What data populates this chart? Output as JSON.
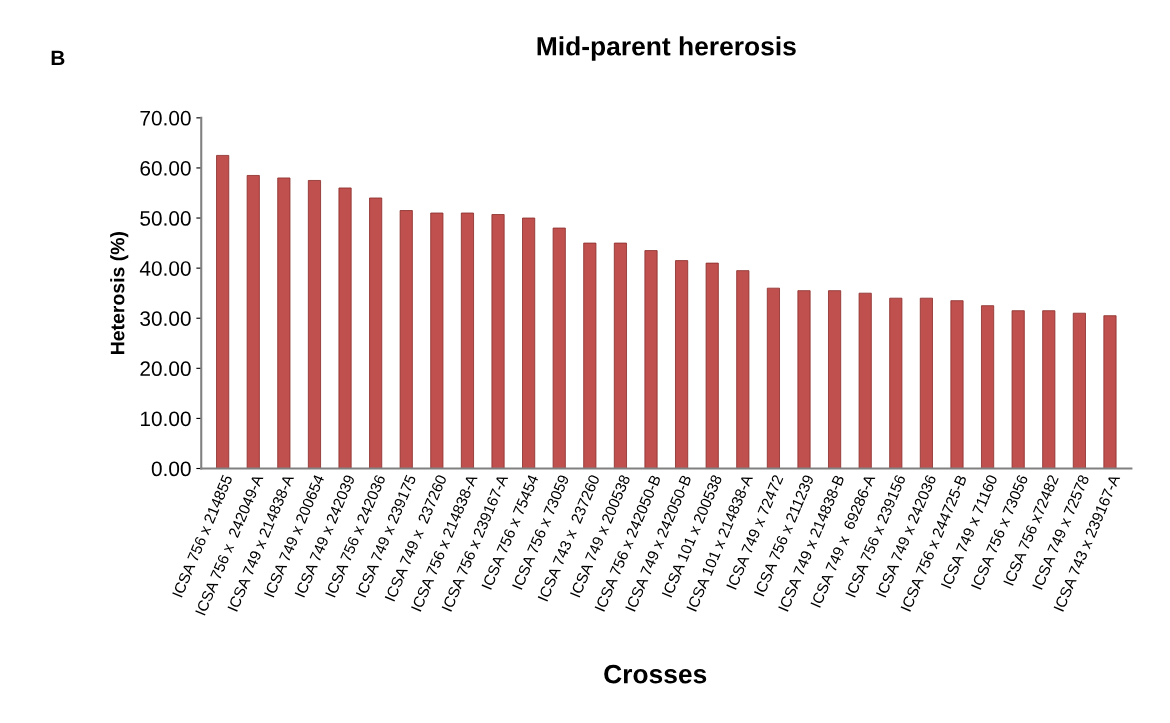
{
  "chart_data": {
    "type": "bar",
    "title": "Mid-parent hererosis",
    "xlabel": "Crosses",
    "ylabel": "Heterosis (%)",
    "annotations": [
      "B"
    ],
    "categories": [
      "ICSA 756 x 214855",
      "ICSA 756 x  242049-A",
      "ICSA 749 x 214838-A",
      "ICSA 749 x 200654",
      "ICSA 749 x 242039",
      "ICSA 756 x 242036",
      "ICSA 749 x 239175",
      "ICSA 749 x  237260",
      "ICSA 756 x 214838-A",
      "ICSA 756 x 239167-A",
      "ICSA 756 x 75454",
      "ICSA 756 x 73059",
      "ICSA 743 x  237260",
      "ICSA 749 x 200538",
      "ICSA 756 x 242050-B",
      "ICSA 749 x 242050-B",
      "ICSA 101 x 200538",
      "ICSA 101 x 214838-A",
      "ICSA 749 x 72472",
      "ICSA 756 x 211239",
      "ICSA 749 x 214838-B",
      "ICSA 749 x  69286-A",
      "ICSA 756 x 239156",
      "ICSA 749 x 242036",
      "ICSA 756 x 244725-B",
      "ICSA 749 x 71160",
      "ICSA 756 x 73056",
      "ICSA 756 x72482",
      "ICSA 749 x 72578",
      "ICSA 743 x 239167-A"
    ],
    "values": [
      62.5,
      58.5,
      58.0,
      57.5,
      56.0,
      54.0,
      51.5,
      51.0,
      51.0,
      50.7,
      50.0,
      48.0,
      45.0,
      45.0,
      43.5,
      41.5,
      41.0,
      39.5,
      36.0,
      35.5,
      35.5,
      35.0,
      34.0,
      34.0,
      33.5,
      32.5,
      31.5,
      31.5,
      31.0,
      30.5
    ],
    "color": "#c0504d",
    "ylim": [
      0,
      70
    ],
    "yticks": [
      {
        "value": 0,
        "label": "0.00"
      },
      {
        "value": 10,
        "label": "10.00"
      },
      {
        "value": 20,
        "label": "20.00"
      },
      {
        "value": 30,
        "label": "30.00"
      },
      {
        "value": 40,
        "label": "40.00"
      },
      {
        "value": 50,
        "label": "50.00"
      },
      {
        "value": 60,
        "label": "60.00"
      },
      {
        "value": 70,
        "label": "70.00"
      }
    ],
    "grid": false,
    "legend": false
  }
}
